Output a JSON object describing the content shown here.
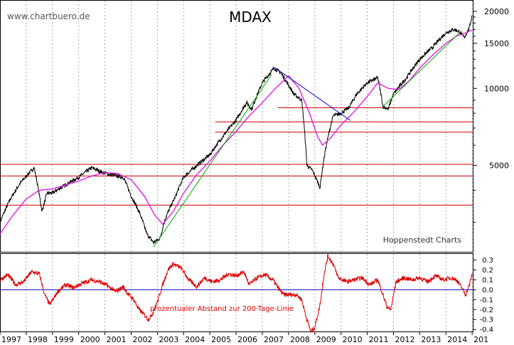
{
  "watermark": "www.chartbuero.de",
  "credit": "Hoppenstedt Charts",
  "colors": {
    "price": "#000000",
    "ma": "#e020e0",
    "support": "#cc0000",
    "trend_up": "#00aa00",
    "trend_down": "#0000cc",
    "oscillator": "#dd0000",
    "zero_line": "#0000cc",
    "grid": "#999999"
  },
  "chart_data": [
    {
      "type": "line",
      "title": "MDAX",
      "y_scale": "log",
      "ylim": [
        2300,
        22000
      ],
      "y_ticks": [
        5000,
        10000,
        15000,
        20000
      ],
      "x_ticks": [
        "1997",
        "1998",
        "1999",
        "2000",
        "2001",
        "2002",
        "2003",
        "2004",
        "2005",
        "2006",
        "2007",
        "2008",
        "2009",
        "2010",
        "2011",
        "2012",
        "2013",
        "2014",
        "201"
      ],
      "grid": true,
      "series": [
        {
          "role": "price",
          "x": [
            1997.0,
            1997.4,
            1997.8,
            1998.3,
            1998.6,
            1998.8,
            1999.0,
            1999.5,
            2000.0,
            2000.5,
            2000.9,
            2001.2,
            2001.7,
            2002.0,
            2002.3,
            2002.6,
            2002.85,
            2003.1,
            2003.3,
            2003.7,
            2004.0,
            2004.5,
            2005.0,
            2005.5,
            2006.0,
            2006.4,
            2006.6,
            2007.0,
            2007.45,
            2007.7,
            2007.9,
            2008.2,
            2008.5,
            2008.7,
            2008.9,
            2009.2,
            2009.4,
            2009.7,
            2010.0,
            2010.3,
            2010.6,
            2011.0,
            2011.4,
            2011.6,
            2011.8,
            2012.0,
            2012.5,
            2013.0,
            2013.5,
            2014.0,
            2014.3,
            2014.5,
            2014.7,
            2014.9,
            2015.0
          ],
          "values": [
            3000,
            3700,
            4300,
            4900,
            3300,
            3900,
            3900,
            4200,
            4500,
            4900,
            4700,
            4600,
            4500,
            3800,
            3300,
            2700,
            2500,
            2600,
            3100,
            3800,
            4500,
            5000,
            5500,
            6500,
            7500,
            8800,
            8300,
            10500,
            12000,
            11500,
            10700,
            9500,
            9000,
            5000,
            4800,
            4100,
            5700,
            7800,
            8000,
            8400,
            9500,
            10500,
            11000,
            8500,
            8300,
            9500,
            11000,
            13000,
            14500,
            16500,
            17000,
            16700,
            15800,
            17300,
            19300
          ]
        },
        {
          "role": "200-day moving average",
          "x": [
            1997.0,
            1997.5,
            1998.0,
            1998.5,
            1999.0,
            1999.5,
            2000.0,
            2000.5,
            2001.0,
            2001.5,
            2002.0,
            2002.5,
            2002.9,
            2003.2,
            2003.6,
            2004.0,
            2004.5,
            2005.0,
            2005.5,
            2006.0,
            2006.5,
            2007.0,
            2007.5,
            2008.0,
            2008.4,
            2008.8,
            2009.1,
            2009.3,
            2009.6,
            2010.0,
            2010.5,
            2011.0,
            2011.4,
            2011.8,
            2012.2,
            2012.6,
            2013.0,
            2013.5,
            2014.0,
            2014.4,
            2014.7,
            2015.0
          ],
          "values": [
            2700,
            3200,
            3700,
            4000,
            4050,
            4200,
            4350,
            4550,
            4700,
            4650,
            4400,
            3800,
            3200,
            2950,
            3300,
            3900,
            4600,
            5200,
            6000,
            6800,
            7800,
            8800,
            10000,
            11200,
            10000,
            8000,
            6500,
            6000,
            6400,
            7200,
            8100,
            9300,
            10500,
            10000,
            9900,
            10700,
            12000,
            13500,
            15000,
            16000,
            16400,
            16900
          ]
        }
      ],
      "trend_lines": [
        {
          "role": "uptrend 2003",
          "from": [
            2002.85,
            2400
          ],
          "to": [
            2007.35,
            11300
          ]
        },
        {
          "role": "downtrend 2007",
          "from": [
            2007.45,
            12100
          ],
          "to": [
            2010.35,
            7500
          ]
        },
        {
          "role": "uptrend 2011",
          "from": [
            2011.6,
            8500
          ],
          "to": [
            2014.6,
            16800
          ]
        }
      ],
      "horizontal_lines": [
        {
          "value": 3500,
          "from_x": 1997.0
        },
        {
          "value": 4550,
          "from_x": 1997.0
        },
        {
          "value": 5050,
          "from_x": 1997.0
        },
        {
          "value": 6750,
          "from_x": 2005.2
        },
        {
          "value": 7400,
          "from_x": 2005.2
        },
        {
          "value": 8400,
          "from_x": 2007.6
        }
      ]
    },
    {
      "type": "line",
      "title": "prozentualer Abstand zur 200-Tage-Linie",
      "ylim": [
        -0.42,
        0.36
      ],
      "y_ticks": [
        0.3,
        0.2,
        0.1,
        0.0,
        -0.1,
        -0.2,
        -0.3,
        -0.4
      ],
      "y_tick_labels": [
        "0.3",
        "0.2",
        "0.1",
        "0.0",
        "-0.1",
        "-0.2",
        "-0.3",
        "-0.4"
      ],
      "grid": true,
      "series": [
        {
          "role": "distance to 200-day line",
          "x": [
            1997.0,
            1997.3,
            1997.6,
            1997.9,
            1998.2,
            1998.5,
            1998.7,
            1998.9,
            1999.2,
            1999.5,
            1999.8,
            2000.1,
            2000.5,
            2000.8,
            2001.1,
            2001.4,
            2001.7,
            2001.9,
            2002.1,
            2002.3,
            2002.5,
            2002.65,
            2002.8,
            2003.0,
            2003.2,
            2003.4,
            2003.6,
            2003.9,
            2004.2,
            2004.5,
            2004.8,
            2005.1,
            2005.4,
            2005.7,
            2006.0,
            2006.3,
            2006.5,
            2006.8,
            2007.1,
            2007.4,
            2007.6,
            2007.8,
            2008.0,
            2008.3,
            2008.5,
            2008.7,
            2008.85,
            2009.0,
            2009.2,
            2009.35,
            2009.5,
            2009.7,
            2009.9,
            2010.2,
            2010.5,
            2010.8,
            2011.1,
            2011.4,
            2011.6,
            2011.75,
            2011.9,
            2012.1,
            2012.4,
            2012.7,
            2013.0,
            2013.3,
            2013.6,
            2013.9,
            2014.2,
            2014.4,
            2014.6,
            2014.75,
            2014.9,
            2015.0
          ],
          "values": [
            0.1,
            0.15,
            0.05,
            0.08,
            0.18,
            0.16,
            -0.05,
            -0.15,
            -0.02,
            0.05,
            0.02,
            0.06,
            0.1,
            0.08,
            0.04,
            -0.02,
            0.03,
            -0.05,
            -0.1,
            -0.2,
            -0.25,
            -0.3,
            -0.25,
            -0.12,
            0.05,
            0.2,
            0.26,
            0.22,
            0.1,
            0.03,
            0.12,
            0.08,
            0.1,
            0.16,
            0.14,
            0.18,
            0.05,
            0.12,
            0.15,
            0.1,
            0.02,
            -0.05,
            -0.05,
            -0.05,
            -0.1,
            -0.3,
            -0.42,
            -0.38,
            -0.15,
            0.15,
            0.34,
            0.26,
            0.12,
            0.08,
            0.1,
            0.12,
            0.05,
            0.1,
            -0.05,
            -0.17,
            -0.2,
            0.08,
            0.12,
            0.1,
            0.12,
            0.08,
            0.14,
            0.1,
            0.12,
            0.1,
            0.02,
            -0.05,
            0.05,
            0.16
          ]
        }
      ]
    }
  ]
}
